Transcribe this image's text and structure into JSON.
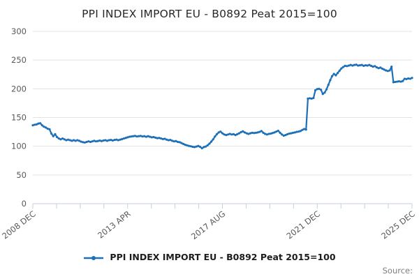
{
  "header": {
    "title": "PPI INDEX IMPORT EU - B0892 Peat 2015=100"
  },
  "legend": {
    "label": "PPI INDEX IMPORT EU - B0892 Peat 2015=100",
    "marker": "line-with-point-icon"
  },
  "footer": {
    "source_label": "Source:"
  },
  "colors": {
    "background": "#ffffff",
    "series_line": "#1d70b8",
    "gridline": "#e3e3e3",
    "axis_line": "#c5cedf",
    "tick_label": "#595959",
    "title_text": "#282828",
    "legend_text": "#1c1c1c",
    "source_text": "#7f7f7f"
  },
  "chart_data": {
    "type": "line",
    "title": "PPI INDEX IMPORT EU - B0892 Peat 2015=100",
    "xlabel": "",
    "ylabel": "",
    "ylim": [
      0,
      300
    ],
    "y_ticks": [
      0,
      50,
      100,
      150,
      200,
      250,
      300
    ],
    "grid": "horizontal",
    "legend_position": "bottom-center",
    "x_axis": {
      "type": "time-monthly",
      "start": "2008 DEC",
      "end": "2025 DEC",
      "minor_tick_count": 17,
      "labeled_tick_indices": [
        0,
        4,
        8,
        12,
        16
      ],
      "labels": [
        "2008 DEC",
        "2013 APR",
        "2017 AUG",
        "2021 DEC",
        "2025 DEC"
      ]
    },
    "series": [
      {
        "name": "PPI INDEX IMPORT EU - B0892 Peat 2015=100",
        "frequency": "monthly",
        "first_period": "2008-12",
        "last_period": "2025-12",
        "values": [
          136.5,
          137.5,
          138,
          139.5,
          140,
          136.5,
          134,
          132.5,
          130.5,
          129.5,
          122,
          117.5,
          121,
          116,
          113.5,
          112,
          113.5,
          112,
          110.5,
          111.5,
          110.5,
          109.5,
          110.5,
          109.5,
          110.5,
          109.5,
          108,
          107,
          106.5,
          107.5,
          108.5,
          107.5,
          108.5,
          109.5,
          108.5,
          109,
          110,
          109,
          110,
          110.5,
          109.5,
          110.5,
          111,
          110,
          111,
          111.5,
          110.5,
          111.5,
          112.5,
          113.5,
          114.5,
          115.5,
          116.5,
          117,
          117.5,
          118,
          117,
          117.5,
          118,
          117,
          117.5,
          116.5,
          117.5,
          116.5,
          115.5,
          116,
          115,
          114,
          114.5,
          113.5,
          112.5,
          113,
          111.5,
          110.5,
          111,
          109.5,
          108.5,
          109,
          107.5,
          107,
          105.5,
          104,
          102.5,
          101.5,
          100.5,
          100,
          99,
          98.5,
          99.5,
          100.5,
          99,
          96.5,
          98.5,
          99.5,
          101.5,
          104.5,
          108,
          112,
          117,
          121,
          124,
          125.5,
          122.5,
          120.5,
          119.5,
          120.5,
          121.5,
          120.5,
          121,
          119.5,
          121,
          122.5,
          124.5,
          126,
          124,
          122.5,
          121.5,
          122.5,
          123.5,
          123,
          123.5,
          124,
          125,
          126.5,
          123.5,
          121.5,
          120.5,
          121.5,
          122,
          123,
          124,
          125.5,
          127,
          123.5,
          120.5,
          118.5,
          119.5,
          121,
          122,
          122.5,
          123.5,
          124,
          125,
          125.5,
          126.5,
          128.5,
          130,
          129,
          183,
          183.5,
          183,
          184,
          197.5,
          199.5,
          200,
          198.5,
          191,
          193.5,
          199,
          207,
          215,
          222,
          226,
          223.5,
          227.5,
          231.5,
          235.5,
          238,
          240,
          239.5,
          240.5,
          241.5,
          240.5,
          241.5,
          242,
          240.5,
          241,
          241.5,
          240,
          241,
          240.5,
          241.5,
          240,
          238.5,
          239.5,
          237.5,
          236,
          237,
          235,
          233.5,
          232,
          231,
          232,
          238.5,
          211.5,
          212,
          212.5,
          213,
          212.5,
          213.5,
          217.5,
          217,
          218,
          217.5,
          219
        ]
      }
    ]
  }
}
